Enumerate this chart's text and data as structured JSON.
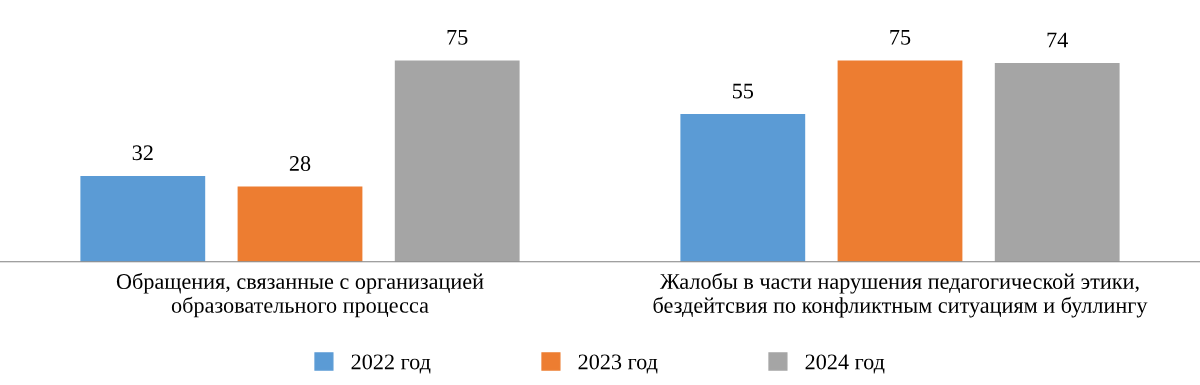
{
  "chart_data": {
    "type": "bar",
    "categories": [
      "Обращения, связанные с организацией\nобразовательного процесса",
      "Жалобы в части нарушения педагогической этики,\nбездейтсвия по конфликтным ситуациям и буллингу"
    ],
    "series": [
      {
        "name": "2022 год",
        "color": "#5b9bd5",
        "values": [
          32,
          55
        ]
      },
      {
        "name": "2023 год",
        "color": "#ed7d31",
        "values": [
          28,
          75
        ]
      },
      {
        "name": "2024 год",
        "color": "#a5a5a5",
        "values": [
          75,
          74
        ]
      }
    ],
    "data_labels": true,
    "legend": "bottom",
    "grid": false
  }
}
